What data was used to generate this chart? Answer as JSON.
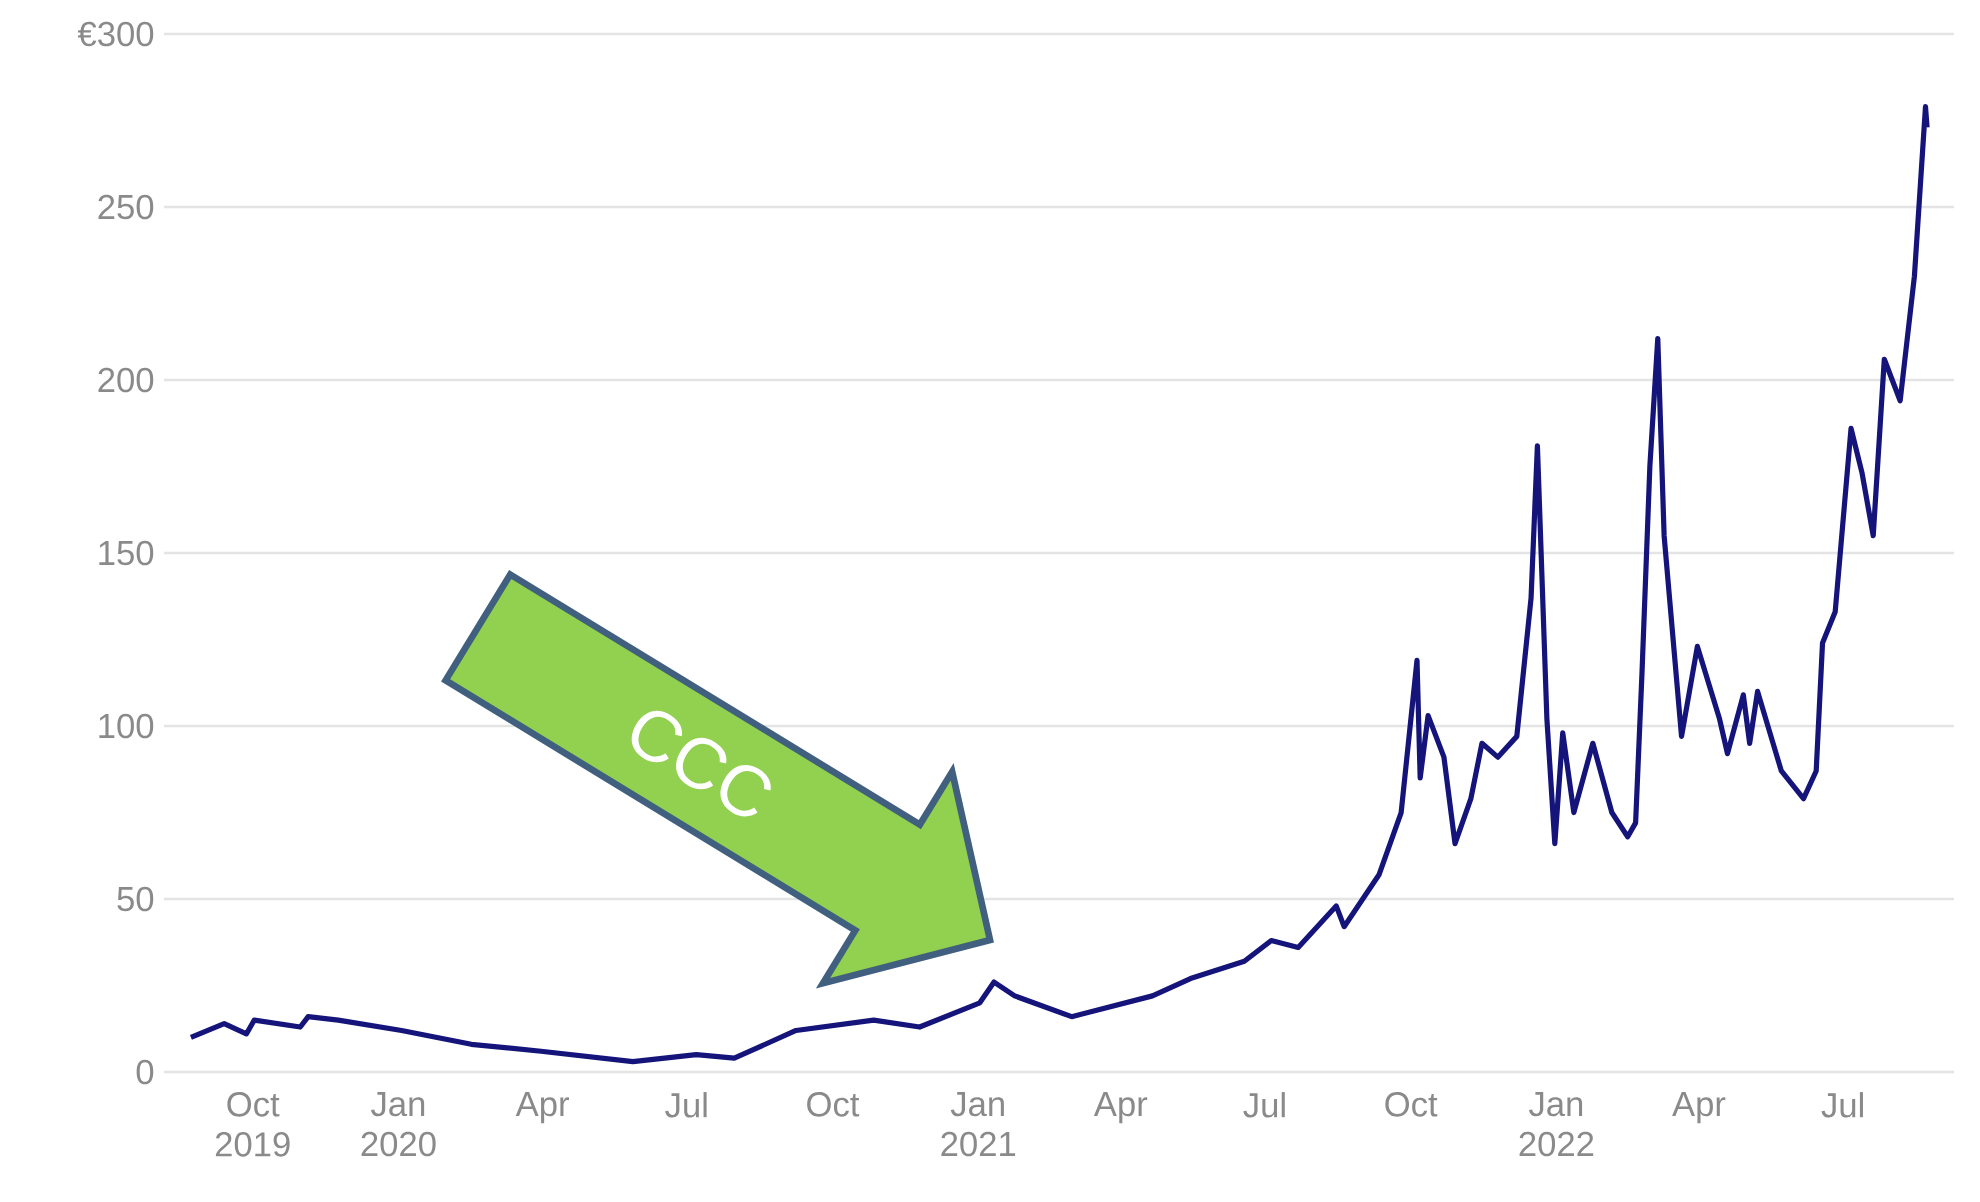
{
  "chart_data": {
    "type": "line",
    "x": [
      "2019-08-23",
      "2019-09-13",
      "2019-09-27",
      "2019-10-02",
      "2019-10-31",
      "2019-11-05",
      "2019-11-24",
      "2020-01-03",
      "2020-02-16",
      "2020-03-31",
      "2020-05-28",
      "2020-07-07",
      "2020-07-31",
      "2020-09-08",
      "2020-10-27",
      "2020-11-25",
      "2021-01-02",
      "2021-01-11",
      "2021-01-24",
      "2021-03-01",
      "2021-04-21",
      "2021-05-15",
      "2021-06-18",
      "2021-07-05",
      "2021-07-22",
      "2021-08-15",
      "2021-08-20",
      "2021-09-11",
      "2021-09-25",
      "2021-10-05",
      "2021-10-07",
      "2021-10-12",
      "2021-10-22",
      "2021-10-29",
      "2021-11-08",
      "2021-11-15",
      "2021-11-25",
      "2021-12-07",
      "2021-12-16",
      "2021-12-20",
      "2021-12-26",
      "2021-12-31",
      "2022-01-05",
      "2022-01-12",
      "2022-01-24",
      "2022-02-05",
      "2022-02-15",
      "2022-02-20",
      "2022-02-24",
      "2022-03-01",
      "2022-03-06",
      "2022-03-10",
      "2022-03-21",
      "2022-03-31",
      "2022-04-14",
      "2022-04-19",
      "2022-04-29",
      "2022-05-03",
      "2022-05-08",
      "2022-05-23",
      "2022-06-06",
      "2022-06-14",
      "2022-06-18",
      "2022-06-26",
      "2022-07-06",
      "2022-07-13",
      "2022-07-20",
      "2022-07-27",
      "2022-08-06",
      "2022-08-15",
      "2022-08-22",
      "2022-08-23"
    ],
    "series": [
      {
        "color": "#14147a",
        "values": [
          10,
          14,
          11,
          15,
          13,
          16,
          15,
          12,
          8,
          6,
          3,
          5,
          4,
          12,
          15,
          13,
          20,
          26,
          22,
          16,
          22,
          27,
          32,
          38,
          36,
          48,
          42,
          57,
          75,
          119,
          85,
          103,
          91,
          66,
          79,
          95,
          91,
          97,
          137,
          181,
          102,
          66,
          98,
          75,
          95,
          75,
          68,
          72,
          115,
          175,
          212,
          155,
          97,
          123,
          102,
          92,
          109,
          95,
          110,
          87,
          79,
          87,
          124,
          133,
          186,
          173,
          155,
          206,
          194,
          230,
          279,
          273
        ]
      }
    ],
    "xlim": [
      "2019-08-06",
      "2022-09-09"
    ],
    "xticks": [
      {
        "value": "2019-10-01",
        "label": "Oct 2019"
      },
      {
        "value": "2020-01-01",
        "label": "Jan 2020"
      },
      {
        "value": "2020-04-01",
        "label": "Apr"
      },
      {
        "value": "2020-07-01",
        "label": "Jul"
      },
      {
        "value": "2020-10-01",
        "label": "Oct"
      },
      {
        "value": "2021-01-01",
        "label": "Jan 2021"
      },
      {
        "value": "2021-04-01",
        "label": "Apr"
      },
      {
        "value": "2021-07-01",
        "label": "Jul"
      },
      {
        "value": "2021-10-01",
        "label": "Oct"
      },
      {
        "value": "2022-01-01",
        "label": "Jan 2022"
      },
      {
        "value": "2022-04-01",
        "label": "Apr"
      },
      {
        "value": "2022-07-01",
        "label": "Jul"
      }
    ],
    "ylim": [
      0,
      300
    ],
    "yticks": [
      0,
      50,
      100,
      150,
      200,
      250,
      {
        "value": 300,
        "label": "€300"
      }
    ],
    "grid": "y",
    "annotations": [
      "CCC"
    ]
  }
}
